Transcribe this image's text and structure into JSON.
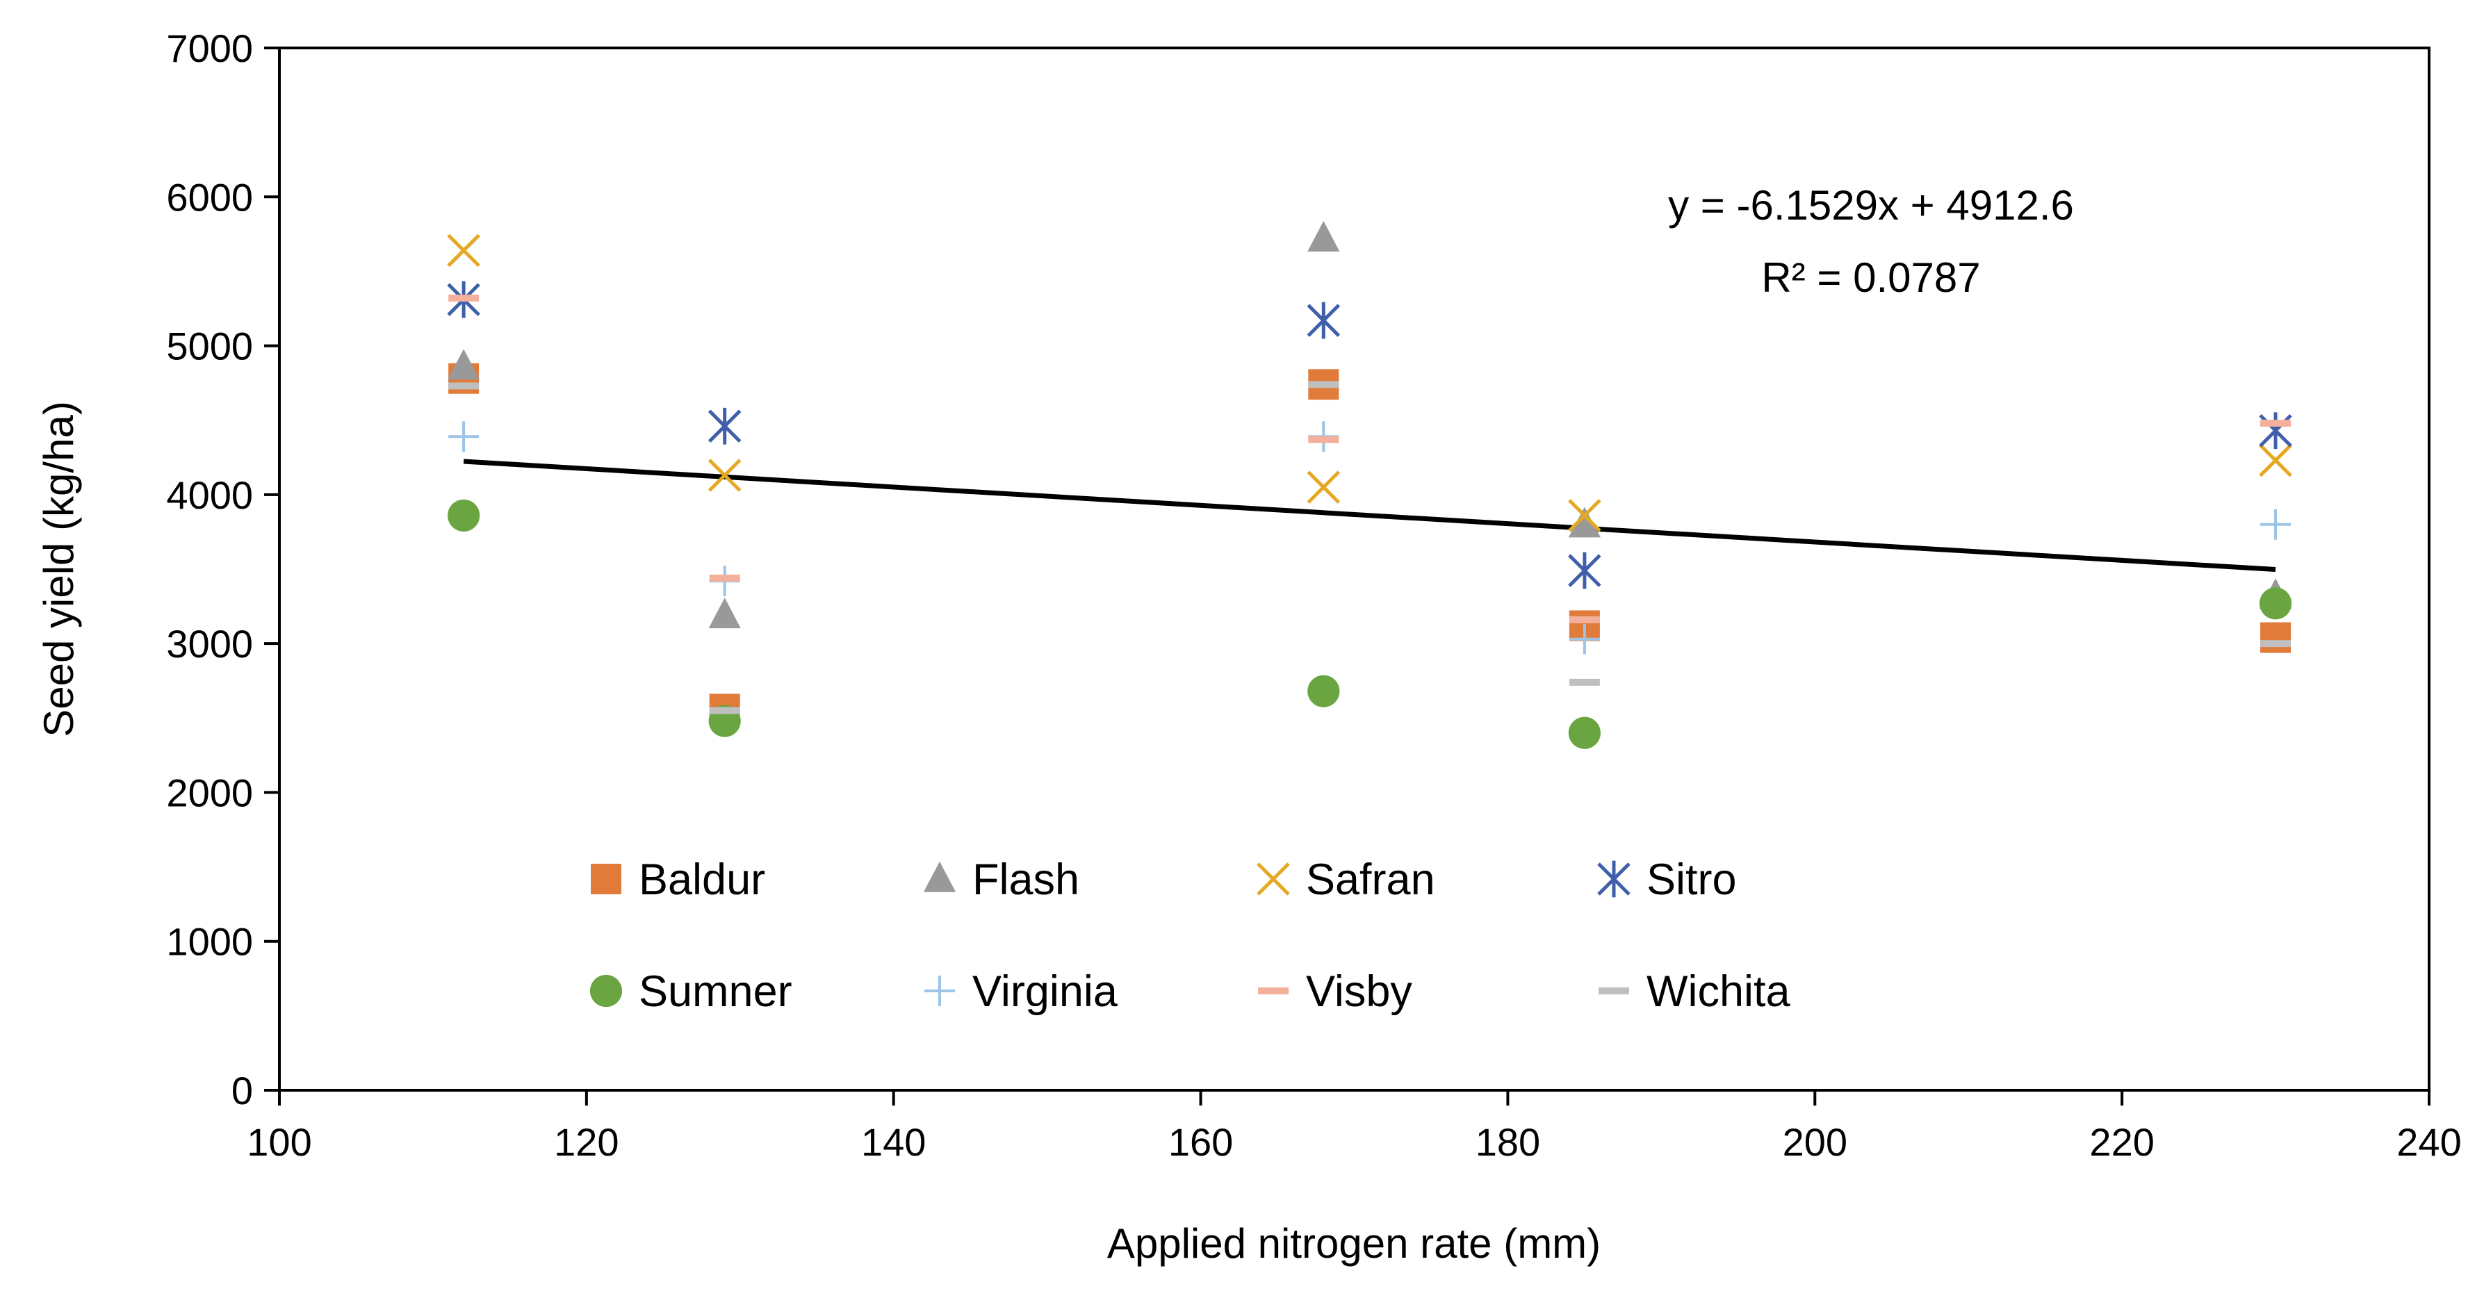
{
  "chart_data": {
    "type": "scatter",
    "xlabel": "Applied nitrogen rate (mm)",
    "ylabel": "Seed yield (kg/ha)",
    "xlim": [
      100,
      240
    ],
    "ylim": [
      0,
      7000
    ],
    "xticks": [
      100,
      120,
      140,
      160,
      180,
      200,
      220,
      240
    ],
    "yticks": [
      0,
      1000,
      2000,
      3000,
      4000,
      5000,
      6000,
      7000
    ],
    "grid": false,
    "legend_position": "bottom-inside",
    "series": [
      {
        "name": "Baldur",
        "marker": "square",
        "color": "#E07B39",
        "points": [
          {
            "x": 112,
            "y": 4780
          },
          {
            "x": 129,
            "y": 2560
          },
          {
            "x": 168,
            "y": 4740
          },
          {
            "x": 185,
            "y": 3120
          },
          {
            "x": 230,
            "y": 3040
          }
        ]
      },
      {
        "name": "Flash",
        "marker": "triangle",
        "color": "#999999",
        "points": [
          {
            "x": 112,
            "y": 4860
          },
          {
            "x": 129,
            "y": 3190
          },
          {
            "x": 168,
            "y": 5720
          },
          {
            "x": 185,
            "y": 3800
          },
          {
            "x": 230,
            "y": 3320
          }
        ]
      },
      {
        "name": "Safran",
        "marker": "x",
        "color": "#E5A823",
        "points": [
          {
            "x": 112,
            "y": 5640
          },
          {
            "x": 129,
            "y": 4130
          },
          {
            "x": 168,
            "y": 4050
          },
          {
            "x": 185,
            "y": 3860
          },
          {
            "x": 230,
            "y": 4230
          }
        ]
      },
      {
        "name": "Sitro",
        "marker": "star",
        "color": "#3F5FAA",
        "points": [
          {
            "x": 112,
            "y": 5310
          },
          {
            "x": 129,
            "y": 4460
          },
          {
            "x": 168,
            "y": 5170
          },
          {
            "x": 185,
            "y": 3490
          },
          {
            "x": 230,
            "y": 4430
          }
        ]
      },
      {
        "name": "Sumner",
        "marker": "circle",
        "color": "#6AA542",
        "points": [
          {
            "x": 112,
            "y": 3860
          },
          {
            "x": 129,
            "y": 2480
          },
          {
            "x": 168,
            "y": 2680
          },
          {
            "x": 185,
            "y": 2400
          },
          {
            "x": 230,
            "y": 3270
          }
        ]
      },
      {
        "name": "Virginia",
        "marker": "plus",
        "color": "#9DC3E6",
        "points": [
          {
            "x": 112,
            "y": 4390
          },
          {
            "x": 129,
            "y": 3420
          },
          {
            "x": 168,
            "y": 4390
          },
          {
            "x": 185,
            "y": 3030
          },
          {
            "x": 230,
            "y": 3800
          }
        ]
      },
      {
        "name": "Visby",
        "marker": "dash",
        "color": "#F4B09A",
        "points": [
          {
            "x": 112,
            "y": 5320
          },
          {
            "x": 129,
            "y": 3440
          },
          {
            "x": 168,
            "y": 4370
          },
          {
            "x": 185,
            "y": 3160
          },
          {
            "x": 230,
            "y": 4480
          }
        ]
      },
      {
        "name": "Wichita",
        "marker": "dash",
        "color": "#BFBFBF",
        "points": [
          {
            "x": 112,
            "y": 4730
          },
          {
            "x": 129,
            "y": 2550
          },
          {
            "x": 168,
            "y": 4740
          },
          {
            "x": 185,
            "y": 2740
          },
          {
            "x": 230,
            "y": 3000
          }
        ]
      }
    ],
    "trendline": {
      "slope": -6.1529,
      "intercept": 4912.6,
      "x_range": [
        112,
        230
      ],
      "color": "#000000",
      "equation_label": "y = -6.1529x + 4912.6",
      "r2_label": "R² = 0.0787"
    }
  }
}
